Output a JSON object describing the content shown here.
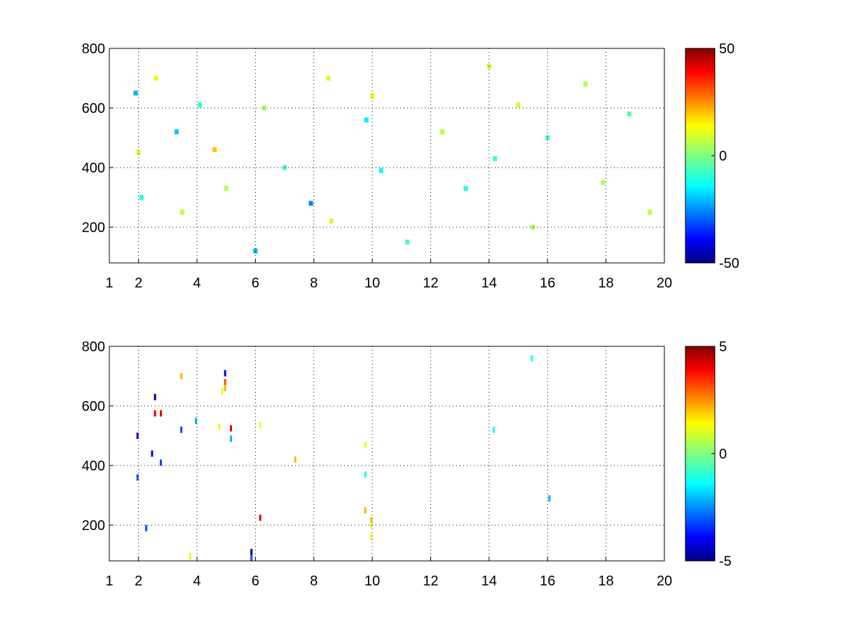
{
  "figure": {
    "background": "#ffffff"
  },
  "chart_data": [
    {
      "type": "heatmap",
      "title": "",
      "xlabel": "",
      "ylabel": "",
      "xlim": [
        1,
        20
      ],
      "ylim": [
        80,
        800
      ],
      "xticks": [
        1,
        2,
        4,
        6,
        8,
        10,
        12,
        14,
        16,
        18,
        20
      ],
      "yticks": [
        200,
        400,
        600,
        800
      ],
      "grid": true,
      "colormap": "jet",
      "clim": [
        -50,
        50
      ],
      "colorbar": {
        "placement": "right",
        "ticks": [
          -50,
          0,
          50
        ]
      },
      "description_of_values": "sparse scattered cells; most in range about -15 to 10, denser at low x, vertical streaks near x = 2, 4, 6, 8, 8.5, 10, 14, 16, 17.3, 17.8",
      "points": [
        {
          "x": 1.9,
          "y": 650,
          "v": -20
        },
        {
          "x": 2.0,
          "y": 450,
          "v": 8
        },
        {
          "x": 2.1,
          "y": 300,
          "v": -10
        },
        {
          "x": 2.6,
          "y": 700,
          "v": 10
        },
        {
          "x": 3.3,
          "y": 520,
          "v": -18
        },
        {
          "x": 3.5,
          "y": 250,
          "v": 6
        },
        {
          "x": 4.1,
          "y": 610,
          "v": -8
        },
        {
          "x": 4.6,
          "y": 460,
          "v": 18
        },
        {
          "x": 5.0,
          "y": 330,
          "v": 5
        },
        {
          "x": 6.0,
          "y": 120,
          "v": -20
        },
        {
          "x": 6.3,
          "y": 600,
          "v": 4
        },
        {
          "x": 7.0,
          "y": 400,
          "v": -6
        },
        {
          "x": 7.9,
          "y": 280,
          "v": -25
        },
        {
          "x": 8.5,
          "y": 700,
          "v": 9
        },
        {
          "x": 8.6,
          "y": 220,
          "v": 7
        },
        {
          "x": 9.8,
          "y": 560,
          "v": -14
        },
        {
          "x": 10.0,
          "y": 640,
          "v": 12
        },
        {
          "x": 10.3,
          "y": 390,
          "v": -12
        },
        {
          "x": 11.2,
          "y": 150,
          "v": -5
        },
        {
          "x": 12.4,
          "y": 520,
          "v": 6
        },
        {
          "x": 13.2,
          "y": 330,
          "v": -9
        },
        {
          "x": 14.0,
          "y": 740,
          "v": 7
        },
        {
          "x": 14.2,
          "y": 430,
          "v": -7
        },
        {
          "x": 15.0,
          "y": 610,
          "v": 8
        },
        {
          "x": 15.5,
          "y": 200,
          "v": 3
        },
        {
          "x": 16.0,
          "y": 500,
          "v": -6
        },
        {
          "x": 17.3,
          "y": 680,
          "v": 5
        },
        {
          "x": 17.9,
          "y": 350,
          "v": 4
        },
        {
          "x": 18.8,
          "y": 580,
          "v": -4
        },
        {
          "x": 19.5,
          "y": 250,
          "v": 6
        }
      ]
    },
    {
      "type": "heatmap",
      "title": "",
      "xlabel": "",
      "ylabel": "",
      "xlim": [
        1,
        20
      ],
      "ylim": [
        80,
        800
      ],
      "xticks": [
        1,
        2,
        4,
        6,
        8,
        10,
        12,
        14,
        16,
        18,
        20
      ],
      "yticks": [
        200,
        400,
        600,
        800
      ],
      "grid": true,
      "colormap": "jet",
      "clim": [
        -5,
        5
      ],
      "colorbar": {
        "placement": "right",
        "ticks": [
          -5,
          0,
          5
        ]
      },
      "points": [
        {
          "x": 2.0,
          "y": 500,
          "v": -4
        },
        {
          "x": 2.0,
          "y": 360,
          "v": -3
        },
        {
          "x": 2.3,
          "y": 190,
          "v": -3
        },
        {
          "x": 2.5,
          "y": 440,
          "v": -4
        },
        {
          "x": 2.6,
          "y": 630,
          "v": -5
        },
        {
          "x": 2.6,
          "y": 575,
          "v": 4
        },
        {
          "x": 2.8,
          "y": 410,
          "v": -3
        },
        {
          "x": 2.8,
          "y": 575,
          "v": 4
        },
        {
          "x": 3.5,
          "y": 700,
          "v": 2
        },
        {
          "x": 3.5,
          "y": 520,
          "v": -3
        },
        {
          "x": 3.8,
          "y": 95,
          "v": 1
        },
        {
          "x": 4.0,
          "y": 550,
          "v": -2
        },
        {
          "x": 4.8,
          "y": 530,
          "v": 1
        },
        {
          "x": 4.9,
          "y": 650,
          "v": 1
        },
        {
          "x": 5.0,
          "y": 710,
          "v": -4
        },
        {
          "x": 5.0,
          "y": 680,
          "v": 3
        },
        {
          "x": 5.0,
          "y": 660,
          "v": 2
        },
        {
          "x": 5.2,
          "y": 525,
          "v": 4
        },
        {
          "x": 5.2,
          "y": 490,
          "v": -2
        },
        {
          "x": 5.9,
          "y": 110,
          "v": -5
        },
        {
          "x": 5.9,
          "y": 90,
          "v": -3
        },
        {
          "x": 6.2,
          "y": 535,
          "v": 1
        },
        {
          "x": 6.2,
          "y": 225,
          "v": 4
        },
        {
          "x": 7.4,
          "y": 420,
          "v": 2
        },
        {
          "x": 9.8,
          "y": 470,
          "v": 1
        },
        {
          "x": 9.8,
          "y": 370,
          "v": -1
        },
        {
          "x": 9.8,
          "y": 250,
          "v": 2
        },
        {
          "x": 10.0,
          "y": 215,
          "v": 2
        },
        {
          "x": 10.0,
          "y": 200,
          "v": 1
        },
        {
          "x": 10.0,
          "y": 160,
          "v": 1
        },
        {
          "x": 14.2,
          "y": 520,
          "v": -1
        },
        {
          "x": 15.5,
          "y": 760,
          "v": -1
        },
        {
          "x": 16.1,
          "y": 290,
          "v": -2
        }
      ]
    }
  ]
}
